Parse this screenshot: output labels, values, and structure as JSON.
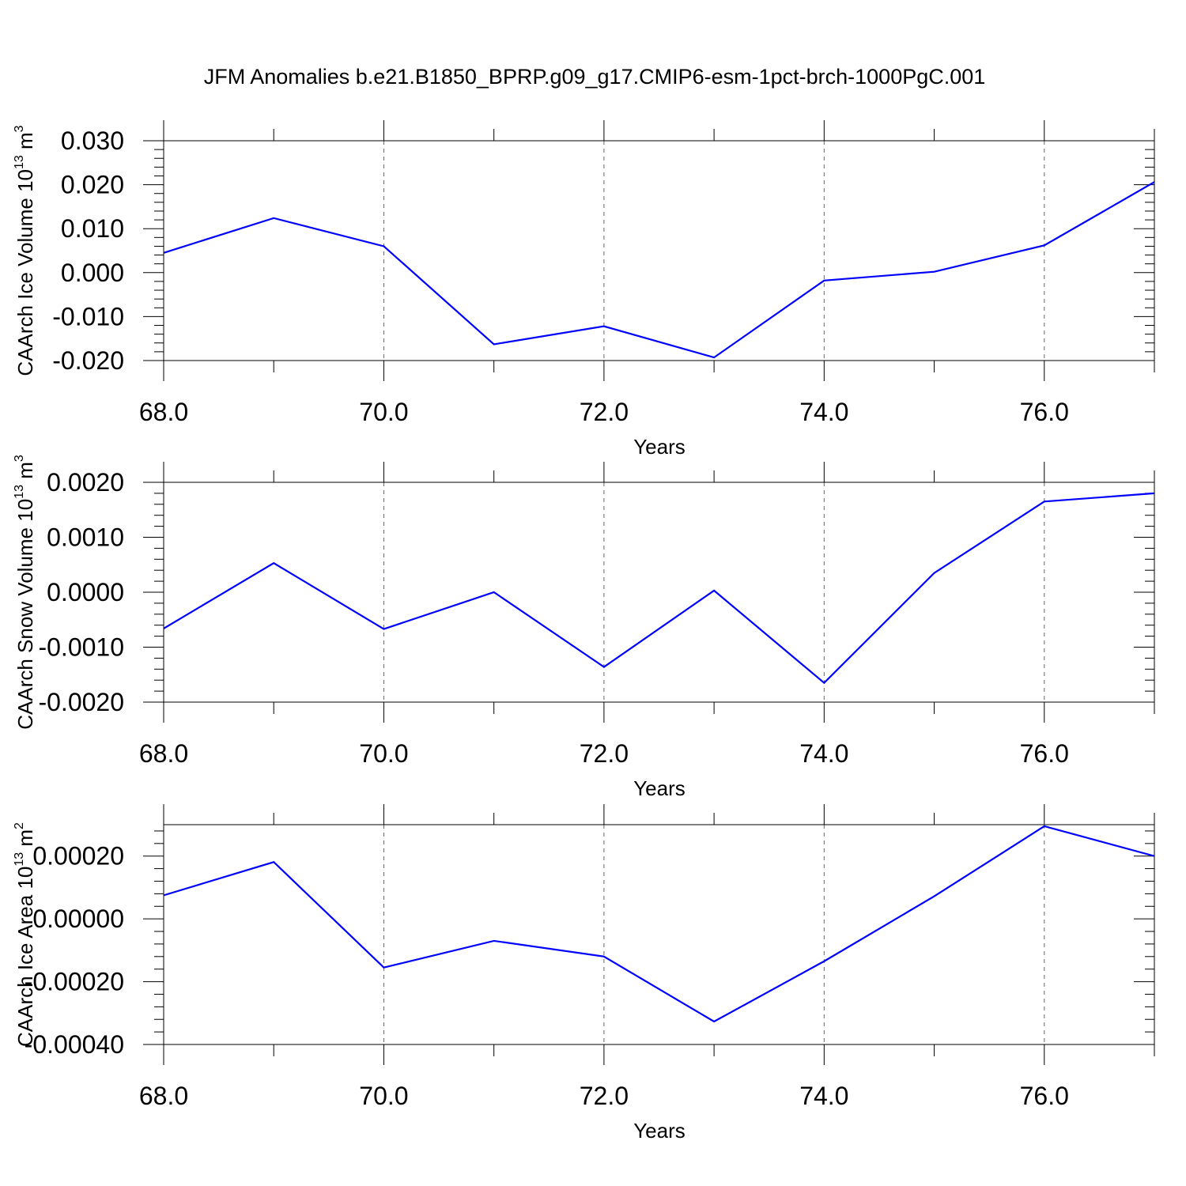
{
  "title": "JFM Anomalies b.e21.B1850_BPRP.g09_g17.CMIP6-esm-1pct-brch-1000PgC.001",
  "colors": {
    "series": "#0000ff",
    "axis": "#000000"
  },
  "chart_data": [
    {
      "type": "line",
      "title": "",
      "xlabel": "Years",
      "ylabel_main": "CAArch Ice Volume 10",
      "ylabel_exp": "13",
      "ylabel_unit": " m",
      "ylabel_unit_exp": "3",
      "xlim": [
        68,
        77
      ],
      "ylim": [
        -0.02,
        0.03
      ],
      "xticks": [
        68,
        70,
        72,
        74,
        76
      ],
      "xtick_labels": [
        "68.0",
        "70.0",
        "72.0",
        "74.0",
        "76.0"
      ],
      "yticks": [
        -0.02,
        -0.01,
        0.0,
        0.01,
        0.02,
        0.03
      ],
      "ytick_labels": [
        "-0.020",
        "-0.010",
        "0.000",
        "0.010",
        "0.020",
        "0.030"
      ],
      "grid": "vertical dashed at major x ticks",
      "series": [
        {
          "x": [
            68,
            69,
            70,
            71,
            72,
            73,
            74,
            75,
            76,
            77
          ],
          "values": [
            0.0045,
            0.0124,
            0.006,
            -0.0163,
            -0.0122,
            -0.0193,
            -0.0018,
            0.0002,
            0.0062,
            0.0206
          ]
        }
      ]
    },
    {
      "type": "line",
      "title": "",
      "xlabel": "Years",
      "ylabel_main": "CAArch Snow Volume 10",
      "ylabel_exp": "13",
      "ylabel_unit": " m",
      "ylabel_unit_exp": "3",
      "xlim": [
        68,
        77
      ],
      "ylim": [
        -0.002,
        0.002
      ],
      "xticks": [
        68,
        70,
        72,
        74,
        76
      ],
      "xtick_labels": [
        "68.0",
        "70.0",
        "72.0",
        "74.0",
        "76.0"
      ],
      "yticks": [
        -0.002,
        -0.001,
        0.0,
        0.001,
        0.002
      ],
      "ytick_labels": [
        "-0.0020",
        "-0.0010",
        "0.0000",
        "0.0010",
        "0.0020"
      ],
      "grid": "vertical dashed at major x ticks",
      "series": [
        {
          "x": [
            68,
            69,
            70,
            71,
            72,
            73,
            74,
            75,
            76,
            77
          ],
          "values": [
            -0.00066,
            0.00053,
            -0.00067,
            0.0,
            -0.00136,
            3e-05,
            -0.00165,
            0.00035,
            0.00165,
            0.0018
          ]
        }
      ]
    },
    {
      "type": "line",
      "title": "",
      "xlabel": "Years",
      "ylabel_main": "CAArch Ice Area 10",
      "ylabel_exp": "13",
      "ylabel_unit": " m",
      "ylabel_unit_exp": "2",
      "xlim": [
        68,
        77
      ],
      "ylim": [
        -0.0004,
        0.0003
      ],
      "xticks": [
        68,
        70,
        72,
        74,
        76
      ],
      "xtick_labels": [
        "68.0",
        "70.0",
        "72.0",
        "74.0",
        "76.0"
      ],
      "yticks": [
        -0.0004,
        -0.0002,
        0.0,
        0.0002
      ],
      "ytick_labels": [
        "-0.00040",
        "-0.00020",
        "0.00000",
        "0.00020"
      ],
      "grid": "vertical dashed at major x ticks",
      "series": [
        {
          "x": [
            68,
            69,
            70,
            71,
            72,
            73,
            74,
            75,
            76,
            77
          ],
          "values": [
            7.5e-05,
            0.000181,
            -0.000155,
            -7e-05,
            -0.00012,
            -0.000327,
            -0.000135,
            7.2e-05,
            0.000295,
            0.0002
          ]
        }
      ]
    }
  ]
}
